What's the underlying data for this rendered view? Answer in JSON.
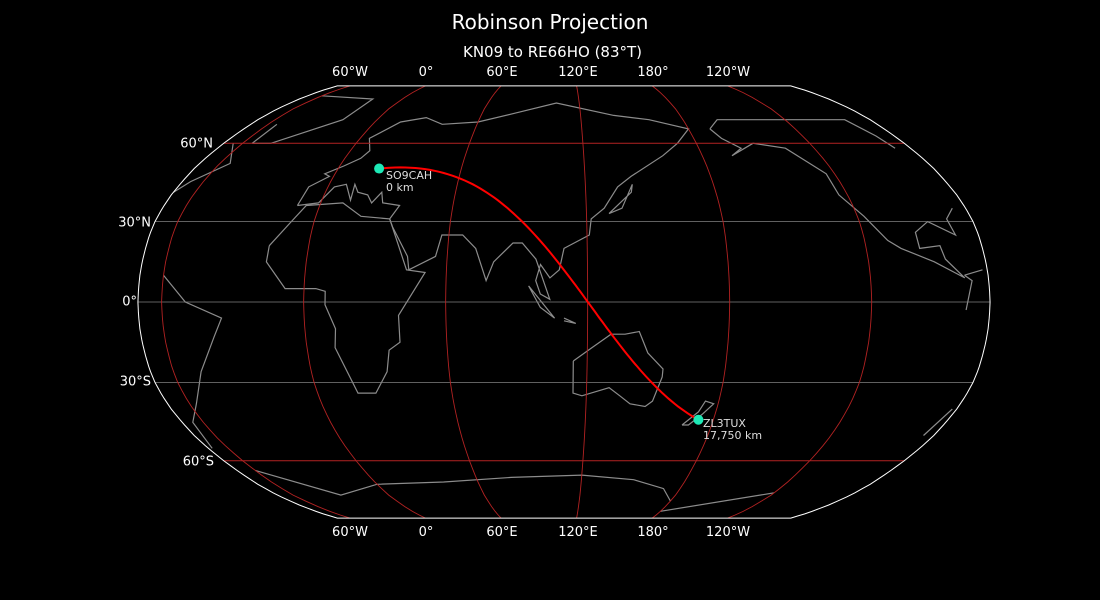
{
  "title": "Robinson Projection",
  "subtitle": "KN09 to RE66HO (83°T)",
  "projection": {
    "type": "robinson",
    "central_longitude": 110
  },
  "colors": {
    "path": "#ff0000",
    "station": "#1de9b6",
    "graticule_meridian": "#b22222",
    "graticule_grey": "#808080",
    "coast": "#8c8c8c",
    "outline": "#ffffff"
  },
  "top_ticks": [
    "60°W",
    "0°",
    "60°E",
    "120°E",
    "180°",
    "120°W"
  ],
  "bottom_ticks": [
    "60°W",
    "0°",
    "60°E",
    "120°E",
    "180°",
    "120°W"
  ],
  "left_ticks": [
    "60°N",
    "30°N",
    "0°",
    "30°S",
    "60°S"
  ],
  "stations": [
    {
      "call": "SO9CAH",
      "distance": "0 km",
      "lon": 20,
      "lat": 50
    },
    {
      "call": "ZL3TUX",
      "distance": "17,750 km",
      "lon": 173,
      "lat": -44
    }
  ]
}
